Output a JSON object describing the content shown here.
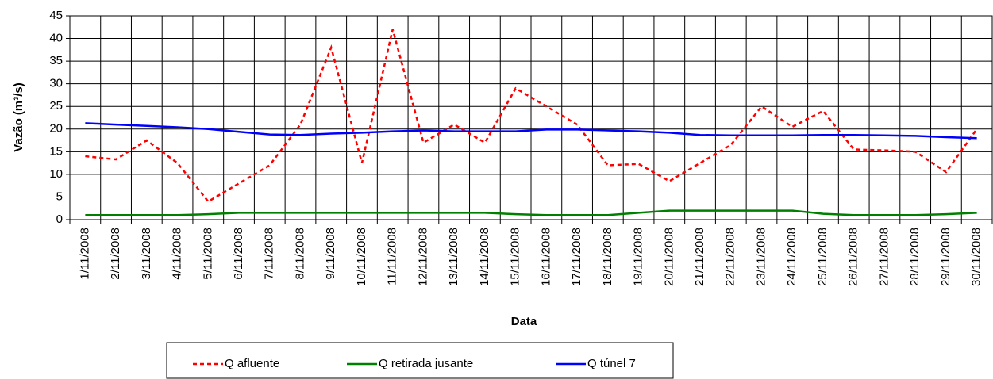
{
  "chart_data": {
    "type": "line",
    "x_label": "Data",
    "y_label": "Vazão (m³/s)",
    "categories": [
      "1/11/2008",
      "2/11/2008",
      "3/11/2008",
      "4/11/2008",
      "5/11/2008",
      "6/11/2008",
      "7/11/2008",
      "8/11/2008",
      "9/11/2008",
      "10/11/2008",
      "11/11/2008",
      "12/11/2008",
      "13/11/2008",
      "14/11/2008",
      "15/11/2008",
      "16/11/2008",
      "17/11/2008",
      "18/11/2008",
      "19/11/2008",
      "20/11/2008",
      "21/11/2008",
      "22/11/2008",
      "23/11/2008",
      "24/11/2008",
      "25/11/2008",
      "26/11/2008",
      "27/11/2008",
      "28/11/2008",
      "29/11/2008",
      "30/11/2008"
    ],
    "series": [
      {
        "name": "Q afluente",
        "color": "#ff0000",
        "dashed": true,
        "values": [
          14,
          13.3,
          17.5,
          12.5,
          4,
          8,
          12,
          21,
          38,
          12.5,
          42,
          17,
          21,
          17,
          29,
          25,
          21,
          12,
          12.3,
          8.5,
          12.5,
          16.5,
          25,
          20.5,
          24,
          15.5,
          15.3,
          15,
          10.5,
          20
        ]
      },
      {
        "name": "Q retirada jusante",
        "color": "#008000",
        "dashed": false,
        "values": [
          1,
          1,
          1,
          1,
          1.2,
          1.5,
          1.5,
          1.5,
          1.5,
          1.5,
          1.5,
          1.5,
          1.5,
          1.5,
          1.2,
          1,
          1,
          1,
          1.5,
          2,
          2,
          2,
          2,
          2,
          1.3,
          1,
          1,
          1,
          1.2,
          1.5
        ]
      },
      {
        "name": "Q túnel 7",
        "color": "#0000ff",
        "dashed": false,
        "values": [
          21.3,
          21,
          20.7,
          20.4,
          20,
          19.4,
          18.8,
          18.7,
          19,
          19.2,
          19.5,
          19.7,
          19.5,
          19.5,
          19.5,
          19.9,
          19.9,
          19.7,
          19.5,
          19.2,
          18.7,
          18.6,
          18.6,
          18.6,
          18.7,
          18.7,
          18.6,
          18.5,
          18.2,
          18
        ]
      }
    ],
    "ylim": [
      0,
      45
    ],
    "yticks": [
      0,
      5,
      10,
      15,
      20,
      25,
      30,
      35,
      40,
      45
    ],
    "grid": true
  }
}
